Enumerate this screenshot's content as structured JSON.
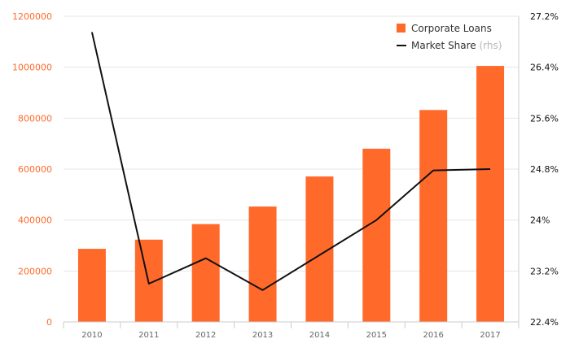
{
  "chart_data": {
    "type": "bar",
    "categories": [
      "2010",
      "2011",
      "2012",
      "2013",
      "2014",
      "2015",
      "2016",
      "2017"
    ],
    "series": [
      {
        "name": "Corporate Loans",
        "type": "bar",
        "axis": "left",
        "color": "#ff6a2b",
        "values": [
          287000,
          323000,
          384000,
          453000,
          571000,
          680000,
          832000,
          1005000
        ]
      },
      {
        "name": "Market Share",
        "name_suffix": "(rhs)",
        "type": "line",
        "axis": "right",
        "color": "#111111",
        "values": [
          26.95,
          23.0,
          23.4,
          22.9,
          23.45,
          24.0,
          24.78,
          24.8
        ]
      }
    ],
    "left_axis": {
      "ylim": [
        0,
        1200000
      ],
      "ticks": [
        {
          "value": 0,
          "label": "0"
        },
        {
          "value": 200000,
          "label": "200000"
        },
        {
          "value": 400000,
          "label": "400000"
        },
        {
          "value": 600000,
          "label": "600000"
        },
        {
          "value": 800000,
          "label": "800000"
        },
        {
          "value": 1000000,
          "label": "1000000"
        },
        {
          "value": 1200000,
          "label": "1200000"
        }
      ],
      "color": "#ff6a2b"
    },
    "right_axis": {
      "ylim": [
        22.4,
        27.2
      ],
      "ticks": [
        {
          "value": 22.4,
          "label": "22.4%"
        },
        {
          "value": 23.2,
          "label": "23.2%"
        },
        {
          "value": 24.0,
          "label": "24%"
        },
        {
          "value": 24.8,
          "label": "24.8%"
        },
        {
          "value": 25.6,
          "label": "25.6%"
        },
        {
          "value": 26.4,
          "label": "26.4%"
        },
        {
          "value": 27.2,
          "label": "27.2%"
        }
      ],
      "color": "#111111"
    },
    "x_axis": {
      "labels": [
        "2010",
        "2011",
        "2012",
        "2013",
        "2014",
        "2015",
        "2016",
        "2017"
      ],
      "color": "#666666"
    },
    "grid": true,
    "legend_placement": "top-right",
    "grid_color": "#e6e6e6",
    "axis_line_color": "#cccccc"
  }
}
